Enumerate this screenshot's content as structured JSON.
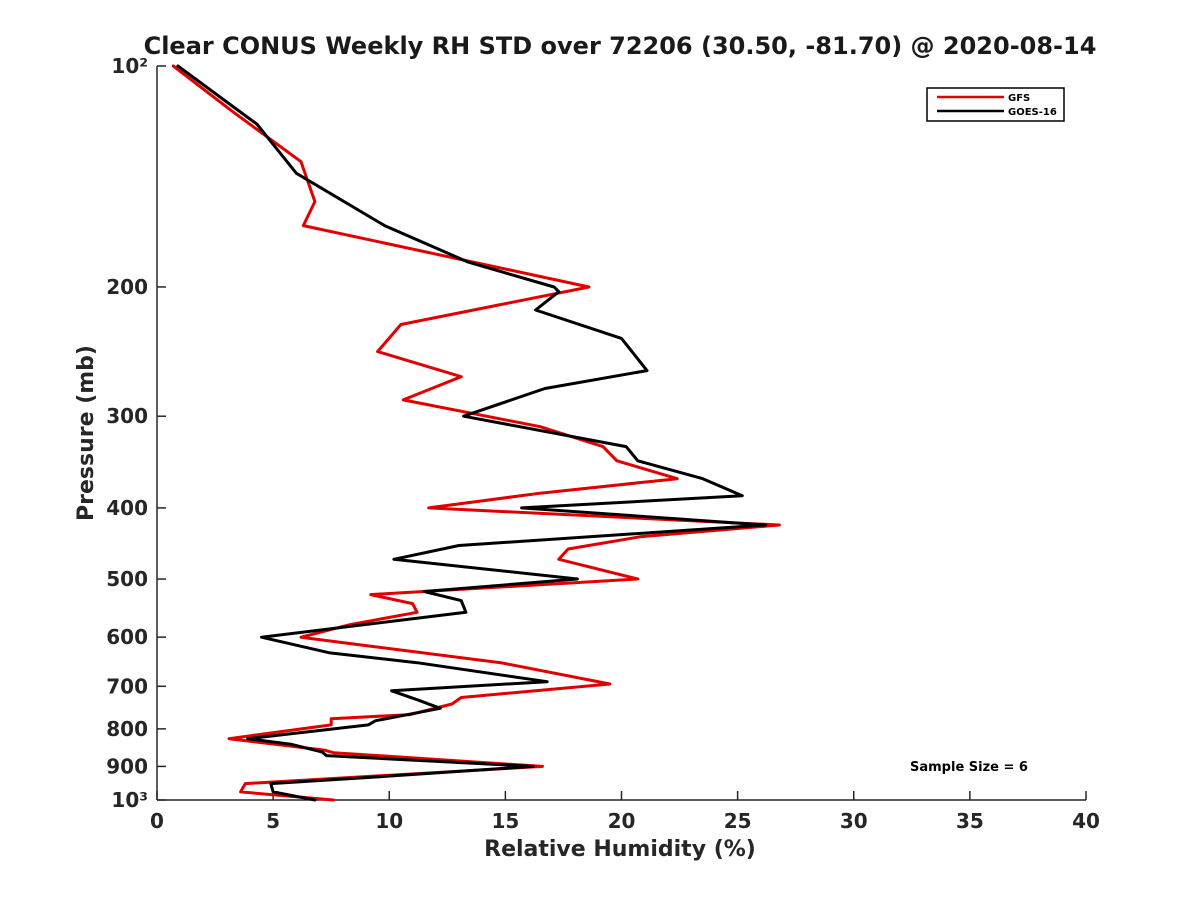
{
  "chart_data": {
    "type": "line",
    "title": "Clear CONUS Weekly RH STD over 72206 (30.50, -81.70) @ 2020-08-14",
    "xlabel": "Relative Humidity (%)",
    "ylabel": "Pressure (mb)",
    "xlim": [
      0,
      40
    ],
    "ylim": [
      100,
      1000
    ],
    "yscale": "log",
    "y_reversed": true,
    "grid": false,
    "legend_position": "top-right",
    "x_ticks": [
      0,
      5,
      10,
      15,
      20,
      25,
      30,
      35,
      40
    ],
    "x_tick_labels": [
      "0",
      "5",
      "10",
      "15",
      "20",
      "25",
      "30",
      "35",
      "40"
    ],
    "y_ticks": [
      100,
      200,
      300,
      400,
      500,
      600,
      700,
      800,
      900,
      1000
    ],
    "y_tick_labels": [
      "10²",
      "200",
      "300",
      "400",
      "500",
      "600",
      "700",
      "800",
      "900",
      "10³"
    ],
    "annotations": [
      {
        "text": "Sample Size = 6"
      }
    ],
    "series": [
      {
        "name": "GFS",
        "color": "#e00000",
        "points": [
          [
            0.7,
            100
          ],
          [
            3.2,
            115
          ],
          [
            6.2,
            135
          ],
          [
            6.8,
            153
          ],
          [
            6.3,
            165
          ],
          [
            18.6,
            200
          ],
          [
            10.5,
            225
          ],
          [
            9.5,
            245
          ],
          [
            13.1,
            265
          ],
          [
            10.6,
            285
          ],
          [
            16.5,
            310
          ],
          [
            19.2,
            330
          ],
          [
            19.8,
            345
          ],
          [
            22.4,
            365
          ],
          [
            16.5,
            382
          ],
          [
            11.7,
            400
          ],
          [
            26.8,
            422
          ],
          [
            20.8,
            438
          ],
          [
            17.7,
            455
          ],
          [
            17.3,
            470
          ],
          [
            20.7,
            500
          ],
          [
            9.2,
            525
          ],
          [
            11.0,
            540
          ],
          [
            11.2,
            555
          ],
          [
            8.3,
            577
          ],
          [
            6.2,
            600
          ],
          [
            9.0,
            616
          ],
          [
            14.8,
            650
          ],
          [
            19.5,
            695
          ],
          [
            13.1,
            725
          ],
          [
            12.7,
            740
          ],
          [
            10.9,
            765
          ],
          [
            7.5,
            775
          ],
          [
            7.5,
            790
          ],
          [
            3.1,
            825
          ],
          [
            7.2,
            855
          ],
          [
            7.6,
            862
          ],
          [
            16.6,
            900
          ],
          [
            3.8,
            950
          ],
          [
            3.6,
            975
          ],
          [
            7.6,
            1000
          ]
        ]
      },
      {
        "name": "GOES-16",
        "color": "#000000",
        "points": [
          [
            0.9,
            100
          ],
          [
            4.3,
            120
          ],
          [
            6.0,
            140
          ],
          [
            9.8,
            165
          ],
          [
            13.4,
            185
          ],
          [
            17.1,
            200
          ],
          [
            17.3,
            203
          ],
          [
            16.3,
            215
          ],
          [
            20.0,
            235
          ],
          [
            21.1,
            260
          ],
          [
            16.7,
            275
          ],
          [
            13.2,
            300
          ],
          [
            20.2,
            330
          ],
          [
            20.7,
            345
          ],
          [
            23.5,
            365
          ],
          [
            25.2,
            385
          ],
          [
            15.7,
            400
          ],
          [
            26.2,
            422
          ],
          [
            13.0,
            450
          ],
          [
            10.2,
            470
          ],
          [
            18.1,
            500
          ],
          [
            11.5,
            520
          ],
          [
            13.1,
            535
          ],
          [
            13.3,
            555
          ],
          [
            4.5,
            600
          ],
          [
            7.4,
            630
          ],
          [
            11.2,
            650
          ],
          [
            16.8,
            690
          ],
          [
            10.1,
            710
          ],
          [
            11.2,
            730
          ],
          [
            12.2,
            750
          ],
          [
            9.4,
            780
          ],
          [
            9.1,
            790
          ],
          [
            3.9,
            825
          ],
          [
            5.8,
            840
          ],
          [
            7.1,
            860
          ],
          [
            7.3,
            870
          ],
          [
            16.2,
            900
          ],
          [
            9.5,
            930
          ],
          [
            4.9,
            950
          ],
          [
            5.0,
            975
          ],
          [
            6.8,
            1000
          ]
        ]
      }
    ]
  }
}
